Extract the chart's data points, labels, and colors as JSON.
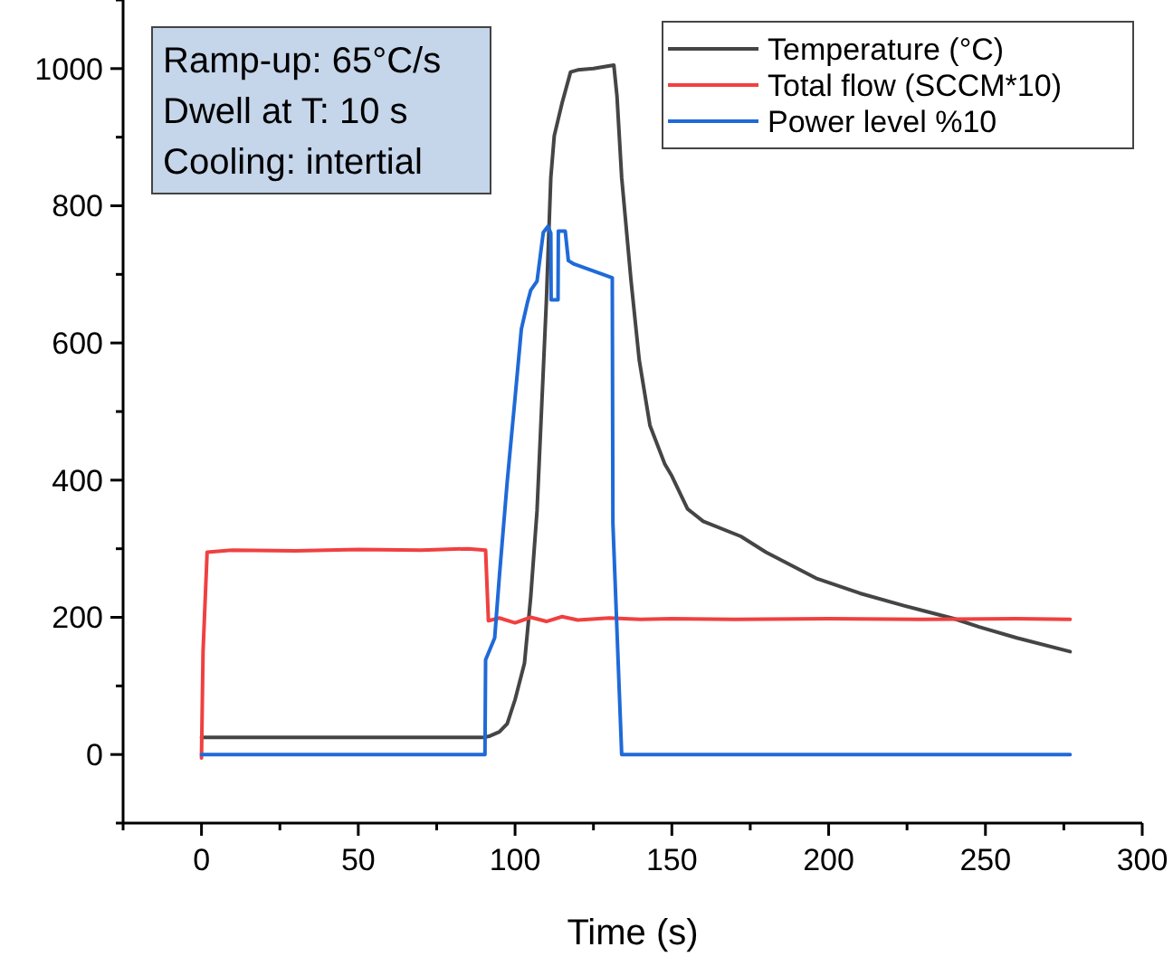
{
  "chart_data": {
    "type": "line",
    "xlabel": "Time (s)",
    "xlim": [
      -25,
      300
    ],
    "ylim": [
      -100,
      1100
    ],
    "xticks": [
      {
        "value": -25,
        "label": null
      },
      0,
      {
        "value": 25,
        "label": null
      },
      50,
      {
        "value": 75,
        "label": null
      },
      100,
      {
        "value": 125,
        "label": null
      },
      150,
      {
        "value": 175,
        "label": null
      },
      200,
      {
        "value": 225,
        "label": null
      },
      250,
      {
        "value": 275,
        "label": null
      },
      300
    ],
    "yticks": [
      {
        "value": -100,
        "label": null
      },
      0,
      {
        "value": 100,
        "label": null
      },
      200,
      {
        "value": 300,
        "label": null
      },
      400,
      {
        "value": 500,
        "label": null
      },
      600,
      {
        "value": 700,
        "label": null
      },
      800,
      {
        "value": 900,
        "label": null
      },
      1000,
      {
        "value": 1100,
        "label": null
      }
    ],
    "annotations": [
      "Ramp-up: 65°C/s",
      "Dwell at T: 10 s",
      "Cooling: intertial"
    ],
    "legend": "top right",
    "grid": false,
    "marker": "none",
    "line_style": "solid",
    "series": [
      {
        "name": "Temperature (°C)",
        "color": "#454545",
        "x": [
          0,
          50,
          90,
          92,
          95,
          97.5,
          100,
          103,
          105,
          107,
          109,
          110,
          111.4,
          112.5,
          115,
          117.7,
          120,
          125,
          131.5,
          132.5,
          134,
          137,
          139.6,
          143,
          147.7,
          150,
          155,
          160,
          172,
          180,
          196,
          210,
          224,
          240,
          248,
          260,
          277
        ],
        "values": [
          25,
          25,
          25,
          27,
          33,
          45,
          80,
          133,
          230,
          355,
          560,
          663,
          841,
          902,
          950,
          995,
          998,
          1000,
          1005,
          960,
          841,
          690,
          575,
          480,
          424,
          406,
          358,
          340,
          318,
          295,
          257,
          235,
          217,
          198,
          186,
          170,
          150
        ]
      },
      {
        "name": "Total flow (SCCM*10)",
        "color": "#f04040",
        "x": [
          0,
          0.5,
          1.8,
          10,
          30,
          50,
          70,
          85,
          90.6,
          91.5,
          95,
          100,
          105,
          110,
          115,
          120,
          130,
          140,
          150,
          170,
          200,
          230,
          260,
          277
        ],
        "values": [
          -5,
          150,
          295,
          298,
          297,
          299,
          298,
          300,
          298,
          195,
          199,
          192,
          200,
          194,
          201,
          196,
          199,
          197,
          198,
          197,
          198,
          197,
          198,
          197
        ]
      },
      {
        "name": "Power level %10",
        "color": "#1f6ad8",
        "x": [
          0,
          50,
          90.4,
          90.6,
          93.5,
          95,
          97.5,
          100,
          102,
          104,
          105,
          107,
          109,
          110.5,
          111.4,
          111.5,
          113.7,
          113.8,
          116,
          117,
          118.8,
          125,
          131,
          131.2,
          134,
          200,
          277
        ],
        "values": [
          0,
          0,
          0,
          138,
          170,
          260,
          398,
          520,
          620,
          660,
          677,
          690,
          761,
          770,
          760,
          663,
          663,
          763,
          763,
          720,
          715,
          705,
          695,
          337,
          0,
          0,
          0
        ]
      }
    ]
  }
}
